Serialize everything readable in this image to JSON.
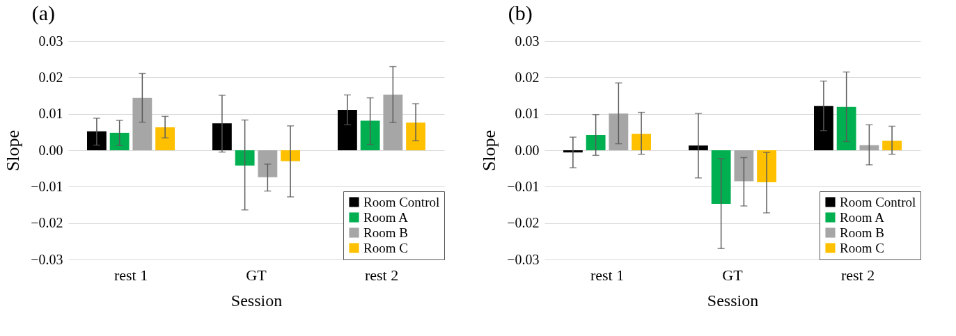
{
  "chart_data": [
    {
      "type": "bar",
      "title": "(a)",
      "xlabel": "Session",
      "ylabel": "Slope",
      "categories": [
        "rest 1",
        "GT",
        "rest 2"
      ],
      "series": [
        {
          "name": "Room Control",
          "color": "#000000",
          "values": [
            0.0052,
            0.0074,
            0.0111
          ],
          "errors": [
            [
              0.0014,
              0.0088
            ],
            [
              -0.0005,
              0.0151
            ],
            [
              0.007,
              0.0152
            ]
          ]
        },
        {
          "name": "Room A",
          "color": "#00b050",
          "values": [
            0.0048,
            -0.0042,
            0.0081
          ],
          "errors": [
            [
              0.0013,
              0.0082
            ],
            [
              -0.0164,
              0.0083
            ],
            [
              0.0016,
              0.0144
            ]
          ]
        },
        {
          "name": "Room B",
          "color": "#a6a6a6",
          "values": [
            0.0144,
            -0.0074,
            0.0153
          ],
          "errors": [
            [
              0.0077,
              0.0211
            ],
            [
              -0.0112,
              -0.0038
            ],
            [
              0.0076,
              0.023
            ]
          ]
        },
        {
          "name": "Room C",
          "color": "#ffc000",
          "values": [
            0.0063,
            -0.003,
            0.0076
          ],
          "errors": [
            [
              0.0034,
              0.0093
            ],
            [
              -0.0128,
              0.0067
            ],
            [
              0.0026,
              0.0128
            ]
          ]
        }
      ],
      "ylim": [
        -0.03,
        0.03
      ],
      "yticks": [
        {
          "value": -0.03,
          "label": "−0.03"
        },
        {
          "value": -0.02,
          "label": "−0.02"
        },
        {
          "value": -0.01,
          "label": "−0.01"
        },
        {
          "value": 0,
          "label": "0.00"
        },
        0.01,
        0.02,
        0.03
      ],
      "grid": "y",
      "legend": "bottom right"
    },
    {
      "type": "bar",
      "title": "(b)",
      "xlabel": "Session",
      "ylabel": "Slope",
      "categories": [
        "rest 1",
        "GT",
        "rest 2"
      ],
      "series": [
        {
          "name": "Room Control",
          "color": "#000000",
          "values": [
            -0.0006,
            0.0013,
            0.0122
          ],
          "errors": [
            [
              -0.0048,
              0.0036
            ],
            [
              -0.0076,
              0.0101
            ],
            [
              0.0054,
              0.019
            ]
          ]
        },
        {
          "name": "Room A",
          "color": "#00b050",
          "values": [
            0.0042,
            -0.0147,
            0.0119
          ],
          "errors": [
            [
              -0.0014,
              0.0098
            ],
            [
              -0.027,
              -0.0023
            ],
            [
              0.0024,
              0.0215
            ]
          ]
        },
        {
          "name": "Room B",
          "color": "#a6a6a6",
          "values": [
            0.0101,
            -0.0085,
            0.0014
          ],
          "errors": [
            [
              0.0018,
              0.0185
            ],
            [
              -0.0153,
              -0.002
            ],
            [
              -0.004,
              0.007
            ]
          ]
        },
        {
          "name": "Room C",
          "color": "#ffc000",
          "values": [
            0.0045,
            -0.0088,
            0.0026
          ],
          "errors": [
            [
              -0.0011,
              0.0104
            ],
            [
              -0.0172,
              -0.0006
            ],
            [
              -0.0011,
              0.0066
            ]
          ]
        }
      ],
      "ylim": [
        -0.03,
        0.03
      ],
      "yticks": [
        {
          "value": -0.03,
          "label": "−0.03"
        },
        {
          "value": -0.02,
          "label": "−0.02"
        },
        {
          "value": -0.01,
          "label": "−0.01"
        },
        {
          "value": 0,
          "label": "0.00"
        },
        0.01,
        0.02,
        0.03
      ],
      "grid": "y",
      "legend": "bottom right"
    }
  ]
}
